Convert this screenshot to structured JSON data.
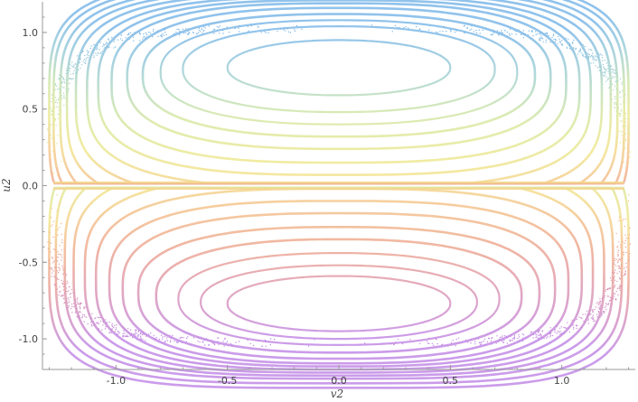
{
  "chart_data": {
    "type": "scatter",
    "title": "",
    "xlabel": "v2",
    "ylabel": "u2",
    "xlim": [
      -1.33,
      1.33
    ],
    "ylim": [
      -1.2,
      1.2
    ],
    "grid": false,
    "legend": "none",
    "x_ticks": [
      {
        "value": -1.0,
        "label": "-1.0"
      },
      {
        "value": -0.5,
        "label": "-0.5"
      },
      {
        "value": 0.0,
        "label": "0.0"
      },
      {
        "value": 0.5,
        "label": "0.5"
      },
      {
        "value": 1.0,
        "label": "1.0"
      }
    ],
    "y_ticks": [
      {
        "value": 1.0,
        "label": "1.0"
      },
      {
        "value": 0.5,
        "label": "0.5"
      },
      {
        "value": 0.0,
        "label": "0.0"
      },
      {
        "value": -0.5,
        "label": "-0.5"
      },
      {
        "value": -1.0,
        "label": "-1.0"
      }
    ],
    "color_by_u": [
      {
        "u": 1.0,
        "color": "#7db8e8"
      },
      {
        "u": 0.72,
        "color": "#a4d2d4"
      },
      {
        "u": 0.45,
        "color": "#d6e8a4"
      },
      {
        "u": 0.1,
        "color": "#f3e88e"
      },
      {
        "u": -0.1,
        "color": "#f5c88e"
      },
      {
        "u": -0.4,
        "color": "#eea890"
      },
      {
        "u": -0.7,
        "color": "#dc98b8"
      },
      {
        "u": -1.0,
        "color": "#c28ae6"
      }
    ],
    "upper_orbits": [
      {
        "cy": 0.77,
        "a": 0.5,
        "b": 0.18
      },
      {
        "cy": 0.76,
        "a": 0.7,
        "b": 0.28
      },
      {
        "cy": 0.74,
        "a": 0.8,
        "b": 0.34
      },
      {
        "cy": 0.72,
        "a": 0.88,
        "b": 0.4
      },
      {
        "cy": 0.7,
        "a": 0.95,
        "b": 0.46
      },
      {
        "cy": 0.67,
        "a": 1.02,
        "b": 0.52
      },
      {
        "cy": 0.64,
        "a": 1.08,
        "b": 0.57
      },
      {
        "cy": 0.61,
        "a": 1.13,
        "b": 0.62
      },
      {
        "cy": 0.58,
        "a": 1.18,
        "b": 0.67
      },
      {
        "cy": 0.55,
        "a": 1.22,
        "b": 0.72
      },
      {
        "cy": 0.52,
        "a": 1.25,
        "b": 0.77
      },
      {
        "cy": 0.49,
        "a": 1.28,
        "b": 0.82
      },
      {
        "cy": 0.47,
        "a": 1.3,
        "b": 0.86
      }
    ],
    "lower_orbits": [
      {
        "cy": -0.77,
        "a": 0.5,
        "b": 0.18
      },
      {
        "cy": -0.76,
        "a": 0.62,
        "b": 0.24
      },
      {
        "cy": -0.74,
        "a": 0.72,
        "b": 0.3
      },
      {
        "cy": -0.72,
        "a": 0.82,
        "b": 0.37
      },
      {
        "cy": -0.7,
        "a": 0.9,
        "b": 0.43
      },
      {
        "cy": -0.67,
        "a": 0.97,
        "b": 0.49
      },
      {
        "cy": -0.64,
        "a": 1.03,
        "b": 0.54
      },
      {
        "cy": -0.61,
        "a": 1.09,
        "b": 0.59
      },
      {
        "cy": -0.58,
        "a": 1.14,
        "b": 0.64
      },
      {
        "cy": -0.55,
        "a": 1.19,
        "b": 0.69
      },
      {
        "cy": -0.52,
        "a": 1.23,
        "b": 0.74
      },
      {
        "cy": -0.49,
        "a": 1.27,
        "b": 0.8
      },
      {
        "cy": -0.47,
        "a": 1.3,
        "b": 0.85
      }
    ],
    "separatrix_level": 0.0,
    "chaotic_band": {
      "u_extent": 1.05,
      "v_extent": 1.31
    }
  }
}
